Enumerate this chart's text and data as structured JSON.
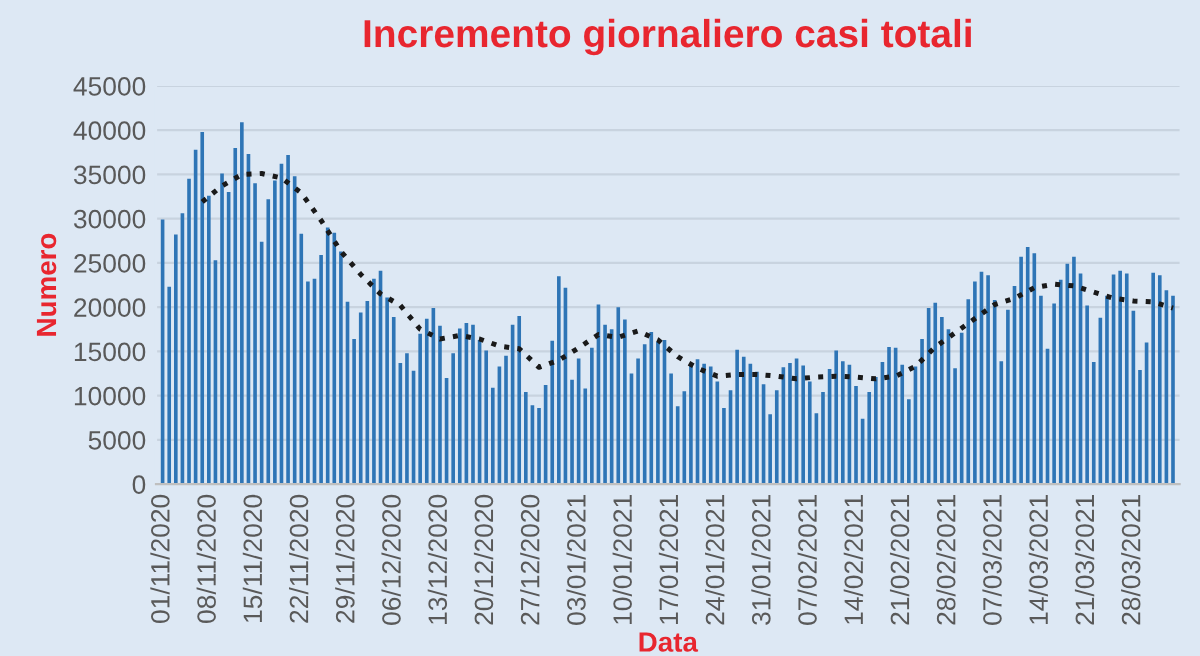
{
  "chart_data": {
    "type": "bar",
    "title": "Incremento giornaliero casi totali",
    "xlabel": "Data",
    "ylabel": "Numero",
    "x": [
      "2020-11-01",
      "2020-11-02",
      "2020-11-03",
      "2020-11-04",
      "2020-11-05",
      "2020-11-06",
      "2020-11-07",
      "2020-11-08",
      "2020-11-09",
      "2020-11-10",
      "2020-11-11",
      "2020-11-12",
      "2020-11-13",
      "2020-11-14",
      "2020-11-15",
      "2020-11-16",
      "2020-11-17",
      "2020-11-18",
      "2020-11-19",
      "2020-11-20",
      "2020-11-21",
      "2020-11-22",
      "2020-11-23",
      "2020-11-24",
      "2020-11-25",
      "2020-11-26",
      "2020-11-27",
      "2020-11-28",
      "2020-11-29",
      "2020-11-30",
      "2020-12-01",
      "2020-12-02",
      "2020-12-03",
      "2020-12-04",
      "2020-12-05",
      "2020-12-06",
      "2020-12-07",
      "2020-12-08",
      "2020-12-09",
      "2020-12-10",
      "2020-12-11",
      "2020-12-12",
      "2020-12-13",
      "2020-12-14",
      "2020-12-15",
      "2020-12-16",
      "2020-12-17",
      "2020-12-18",
      "2020-12-19",
      "2020-12-20",
      "2020-12-21",
      "2020-12-22",
      "2020-12-23",
      "2020-12-24",
      "2020-12-25",
      "2020-12-26",
      "2020-12-27",
      "2020-12-28",
      "2020-12-29",
      "2020-12-30",
      "2020-12-31",
      "2021-01-01",
      "2021-01-02",
      "2021-01-03",
      "2021-01-04",
      "2021-01-05",
      "2021-01-06",
      "2021-01-07",
      "2021-01-08",
      "2021-01-09",
      "2021-01-10",
      "2021-01-11",
      "2021-01-12",
      "2021-01-13",
      "2021-01-14",
      "2021-01-15",
      "2021-01-16",
      "2021-01-17",
      "2021-01-18",
      "2021-01-19",
      "2021-01-20",
      "2021-01-21",
      "2021-01-22",
      "2021-01-23",
      "2021-01-24",
      "2021-01-25",
      "2021-01-26",
      "2021-01-27",
      "2021-01-28",
      "2021-01-29",
      "2021-01-30",
      "2021-01-31",
      "2021-02-01",
      "2021-02-02",
      "2021-02-03",
      "2021-02-04",
      "2021-02-05",
      "2021-02-06",
      "2021-02-07",
      "2021-02-08",
      "2021-02-09",
      "2021-02-10",
      "2021-02-11",
      "2021-02-12",
      "2021-02-13",
      "2021-02-14",
      "2021-02-15",
      "2021-02-16",
      "2021-02-17",
      "2021-02-18",
      "2021-02-19",
      "2021-02-20",
      "2021-02-21",
      "2021-02-22",
      "2021-02-23",
      "2021-02-24",
      "2021-02-25",
      "2021-02-26",
      "2021-02-27",
      "2021-02-28",
      "2021-03-01",
      "2021-03-02",
      "2021-03-03",
      "2021-03-04",
      "2021-03-05",
      "2021-03-06",
      "2021-03-07",
      "2021-03-08",
      "2021-03-09",
      "2021-03-10",
      "2021-03-11",
      "2021-03-12",
      "2021-03-13",
      "2021-03-14",
      "2021-03-15",
      "2021-03-16",
      "2021-03-17",
      "2021-03-18",
      "2021-03-19",
      "2021-03-20",
      "2021-03-21",
      "2021-03-22",
      "2021-03-23",
      "2021-03-24",
      "2021-03-25",
      "2021-03-26",
      "2021-03-27",
      "2021-03-28",
      "2021-03-29",
      "2021-03-30",
      "2021-03-31",
      "2021-04-01",
      "2021-04-02",
      "2021-04-03"
    ],
    "series": [
      {
        "color": "#2e75b6",
        "values": [
          29900,
          22300,
          28200,
          30600,
          34500,
          37800,
          39800,
          32600,
          25300,
          35100,
          33000,
          38000,
          40900,
          37300,
          34000,
          27400,
          32200,
          34300,
          36200,
          37200,
          34800,
          28300,
          22900,
          23200,
          25900,
          29000,
          28400,
          26300,
          20600,
          16400,
          19400,
          20700,
          23200,
          24100,
          21100,
          18900,
          13700,
          14800,
          12800,
          17000,
          18700,
          19900,
          17900,
          12000,
          14800,
          17600,
          18200,
          18000,
          16300,
          15100,
          10900,
          13300,
          14500,
          18000,
          19000,
          10400,
          8900,
          8600,
          11200,
          16200,
          23500,
          22200,
          11800,
          14200,
          10800,
          15400,
          20300,
          18000,
          17500,
          20000,
          18600,
          12500,
          14200,
          15800,
          17200,
          16100,
          16300,
          12500,
          8800,
          10500,
          13600,
          14100,
          13600,
          13300,
          11600,
          8600,
          10600,
          15200,
          14400,
          13600,
          12700,
          11300,
          7900,
          10600,
          13200,
          13700,
          14200,
          13400,
          11600,
          8000,
          10400,
          13000,
          15100,
          13900,
          13500,
          11100,
          7400,
          10400,
          12100,
          13800,
          15500,
          15400,
          13500,
          9600,
          13300,
          16400,
          19900,
          20500,
          18900,
          17500,
          13100,
          17100,
          20900,
          22900,
          24000,
          23600,
          20800,
          13900,
          19700,
          22400,
          25700,
          26800,
          26100,
          21300,
          15300,
          20400,
          23100,
          24900,
          25700,
          23800,
          20200,
          13800,
          18800,
          21300,
          23700,
          24100,
          23800,
          19600,
          12900,
          16000,
          23900,
          23600,
          21900,
          21300
        ]
      },
      {
        "type": "line",
        "color": "#1a1a1a",
        "line_style": "dotted",
        "marker": "none",
        "x": [
          "2020-11-07",
          "2020-11-10",
          "2020-11-13",
          "2020-11-16",
          "2020-11-19",
          "2020-11-22",
          "2020-11-25",
          "2020-11-28",
          "2020-12-01",
          "2020-12-04",
          "2020-12-07",
          "2020-12-10",
          "2020-12-13",
          "2020-12-16",
          "2020-12-19",
          "2020-12-22",
          "2020-12-25",
          "2020-12-28",
          "2020-12-31",
          "2021-01-03",
          "2021-01-06",
          "2021-01-09",
          "2021-01-12",
          "2021-01-15",
          "2021-01-18",
          "2021-01-21",
          "2021-01-24",
          "2021-01-27",
          "2021-01-30",
          "2021-02-02",
          "2021-02-05",
          "2021-02-08",
          "2021-02-11",
          "2021-02-14",
          "2021-02-17",
          "2021-02-20",
          "2021-02-23",
          "2021-02-26",
          "2021-03-01",
          "2021-03-04",
          "2021-03-07",
          "2021-03-10",
          "2021-03-13",
          "2021-03-16",
          "2021-03-19",
          "2021-03-22",
          "2021-03-25",
          "2021-03-28",
          "2021-03-31",
          "2021-04-03"
        ],
        "values": [
          31900,
          33700,
          35000,
          35100,
          34600,
          32900,
          29800,
          26300,
          23700,
          21500,
          20200,
          17500,
          16400,
          16800,
          16400,
          15600,
          15300,
          13200,
          14000,
          15400,
          16900,
          16600,
          17300,
          16300,
          14400,
          13100,
          12200,
          12400,
          12400,
          12200,
          11900,
          12100,
          12200,
          12100,
          11900,
          12200,
          13300,
          15500,
          17100,
          18700,
          20300,
          21000,
          22200,
          22600,
          22400,
          21700,
          21000,
          20700,
          20600,
          19900
        ]
      }
    ],
    "xlim": [
      "2020-10-31",
      "2021-04-04"
    ],
    "xticks": [
      {
        "value": "2020-11-01",
        "label": "01/11/2020"
      },
      {
        "value": "2020-11-08",
        "label": "08/11/2020"
      },
      {
        "value": "2020-11-15",
        "label": "15/11/2020"
      },
      {
        "value": "2020-11-22",
        "label": "22/11/2020"
      },
      {
        "value": "2020-11-29",
        "label": "29/11/2020"
      },
      {
        "value": "2020-12-06",
        "label": "06/12/2020"
      },
      {
        "value": "2020-12-13",
        "label": "13/12/2020"
      },
      {
        "value": "2020-12-20",
        "label": "20/12/2020"
      },
      {
        "value": "2020-12-27",
        "label": "27/12/2020"
      },
      {
        "value": "2021-01-03",
        "label": "03/01/2021"
      },
      {
        "value": "2021-01-10",
        "label": "10/01/2021"
      },
      {
        "value": "2021-01-17",
        "label": "17/01/2021"
      },
      {
        "value": "2021-01-24",
        "label": "24/01/2021"
      },
      {
        "value": "2021-01-31",
        "label": "31/01/2021"
      },
      {
        "value": "2021-02-07",
        "label": "07/02/2021"
      },
      {
        "value": "2021-02-14",
        "label": "14/02/2021"
      },
      {
        "value": "2021-02-21",
        "label": "21/02/2021"
      },
      {
        "value": "2021-02-28",
        "label": "28/02/2021"
      },
      {
        "value": "2021-03-07",
        "label": "07/03/2021"
      },
      {
        "value": "2021-03-14",
        "label": "14/03/2021"
      },
      {
        "value": "2021-03-21",
        "label": "21/03/2021"
      },
      {
        "value": "2021-03-28",
        "label": "28/03/2021"
      }
    ],
    "ylim": [
      0,
      45000
    ],
    "yticks": [
      0,
      5000,
      10000,
      15000,
      20000,
      25000,
      30000,
      35000,
      40000,
      45000
    ],
    "grid": "y"
  }
}
